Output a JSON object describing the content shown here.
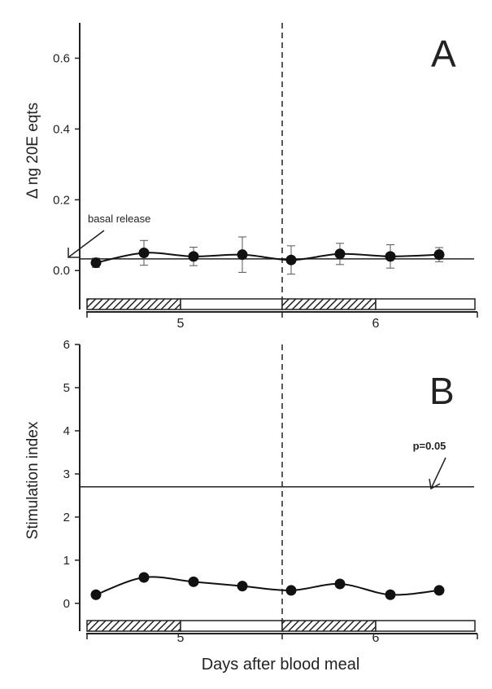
{
  "chart_data": [
    {
      "type": "line",
      "panel_label": "A",
      "ylabel": "Δ ng 20E eqts",
      "ylim": [
        -0.08,
        0.7
      ],
      "yticks": [
        "0.0",
        "0.2",
        "0.4",
        "0.6"
      ],
      "x": [
        1,
        2,
        3,
        4,
        5,
        6,
        7,
        8
      ],
      "series": [
        {
          "values": [
            0.022,
            0.05,
            0.04,
            0.045,
            0.03,
            0.047,
            0.04,
            0.045
          ],
          "error": [
            0.013,
            0.035,
            0.026,
            0.05,
            0.04,
            0.03,
            0.033,
            0.02
          ]
        }
      ],
      "reference_line": {
        "value": 0.033,
        "label": "basal release"
      },
      "day_labels": [
        "5",
        "6"
      ],
      "day_boundary_dashed": true,
      "light_dark_bar": [
        "hatched",
        "open",
        "hatched",
        "open"
      ]
    },
    {
      "type": "line",
      "panel_label": "B",
      "ylabel": "Stimulation index",
      "xlabel": "Days after blood meal",
      "ylim": [
        -0.4,
        6
      ],
      "yticks": [
        "0",
        "1",
        "2",
        "3",
        "4",
        "5",
        "6"
      ],
      "x": [
        1,
        2,
        3,
        4,
        5,
        6,
        7,
        8
      ],
      "series": [
        {
          "values": [
            0.2,
            0.6,
            0.5,
            0.4,
            0.3,
            0.45,
            0.2,
            0.3
          ]
        }
      ],
      "reference_line": {
        "value": 2.7,
        "label": "p=0.05"
      },
      "day_labels": [
        "5",
        "6"
      ],
      "day_boundary_dashed": true,
      "light_dark_bar": [
        "hatched",
        "open",
        "hatched",
        "open"
      ]
    }
  ]
}
